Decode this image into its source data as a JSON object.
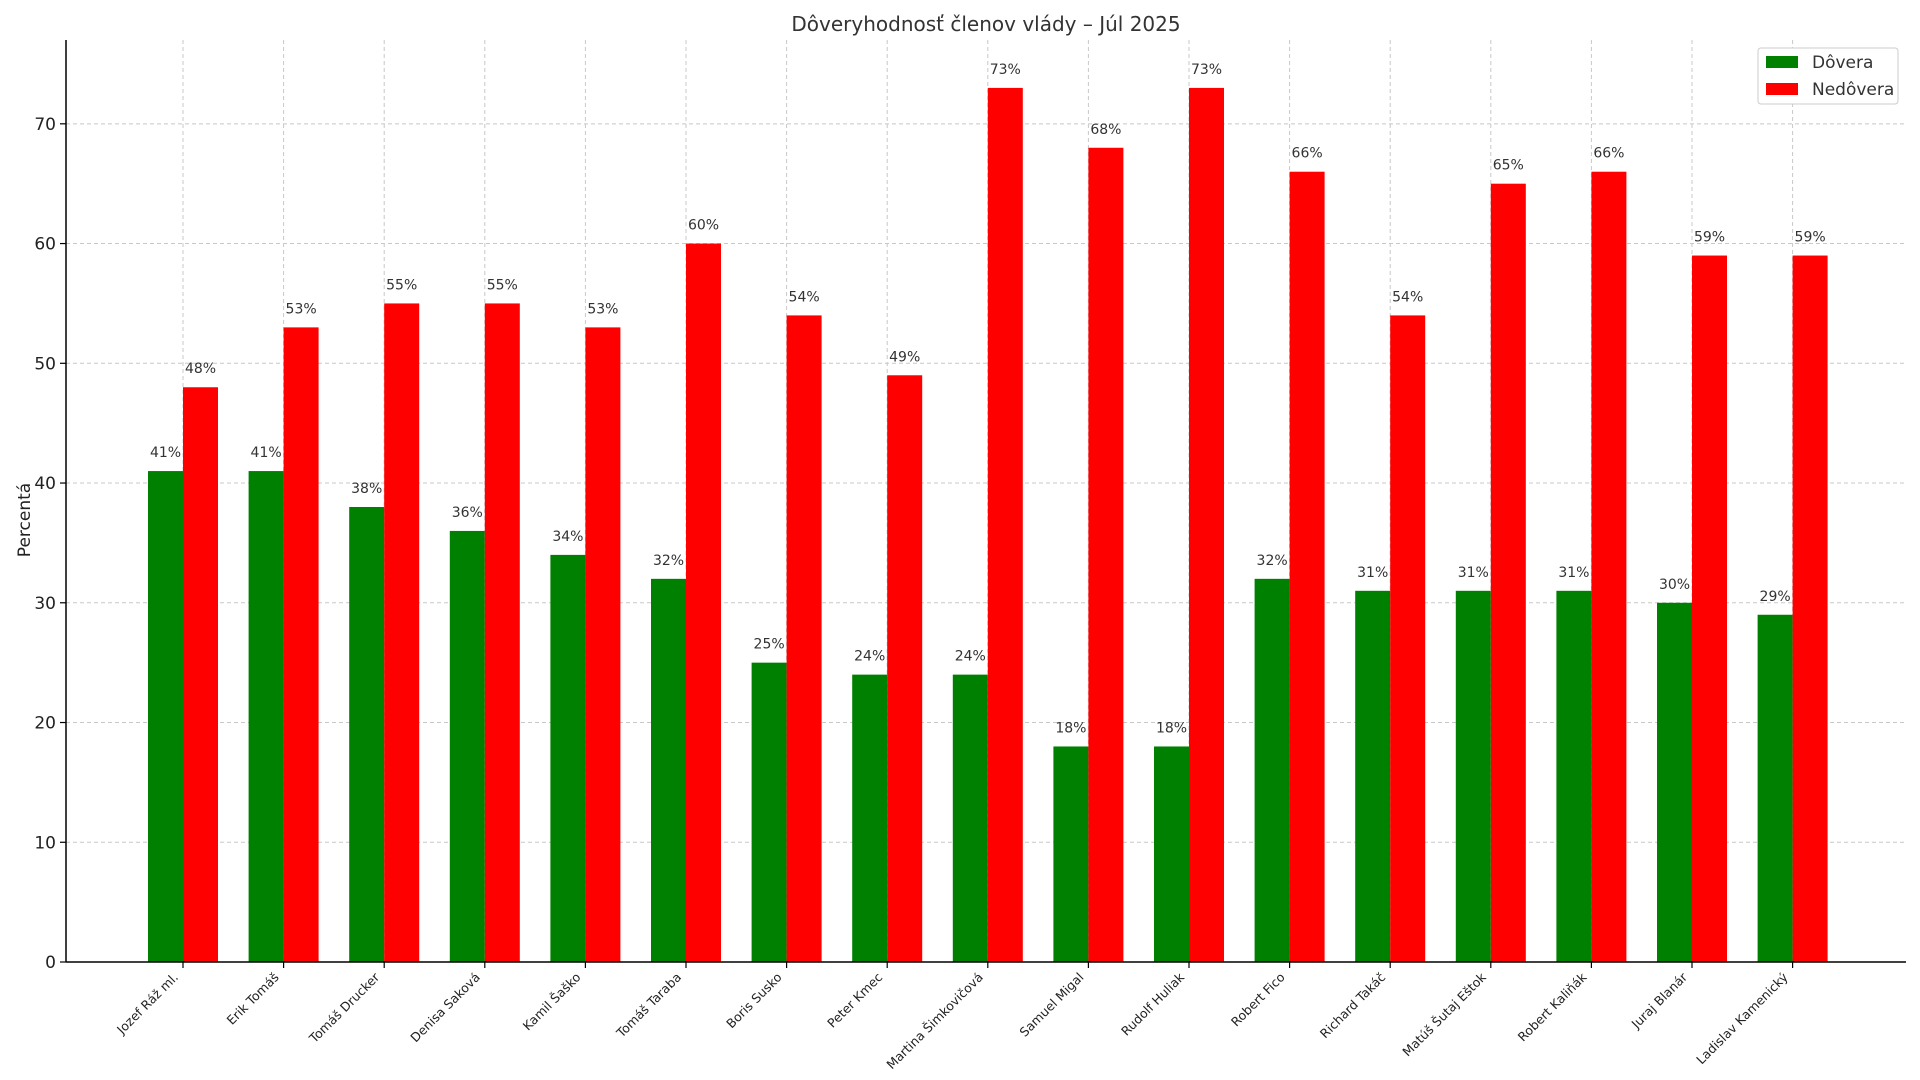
{
  "chart_data": {
    "type": "bar",
    "title": "Dôveryhodnosť členov vlády – Júl 2025",
    "xlabel": "",
    "ylabel": "Percentá",
    "ylim": [
      0,
      77
    ],
    "yticks": [
      0,
      10,
      20,
      30,
      40,
      50,
      60,
      70
    ],
    "grid": true,
    "legend_position": "top-right",
    "categories": [
      "Jozef Ráž ml.",
      "Erik Tomáš",
      "Tomáš Drucker",
      "Denisa Saková",
      "Kamil Šaško",
      "Tomáš Taraba",
      "Boris Susko",
      "Peter Kmec",
      "Martina Šimkovičová",
      "Samuel Migal",
      "Rudolf Huliak",
      "Robert Fico",
      "Richard Takáč",
      "Matúš Šutaj Eštok",
      "Robert Kaliňák",
      "Juraj Blanár",
      "Ladislav Kamenický"
    ],
    "series": [
      {
        "name": "Dôvera",
        "color": "#008000",
        "values": [
          41,
          41,
          38,
          36,
          34,
          32,
          25,
          24,
          24,
          18,
          18,
          32,
          31,
          31,
          31,
          30,
          29
        ]
      },
      {
        "name": "Nedôvera",
        "color": "#ff0000",
        "values": [
          48,
          53,
          55,
          55,
          53,
          60,
          54,
          49,
          73,
          68,
          73,
          66,
          54,
          65,
          66,
          59,
          59
        ]
      }
    ],
    "value_suffix": "%"
  }
}
